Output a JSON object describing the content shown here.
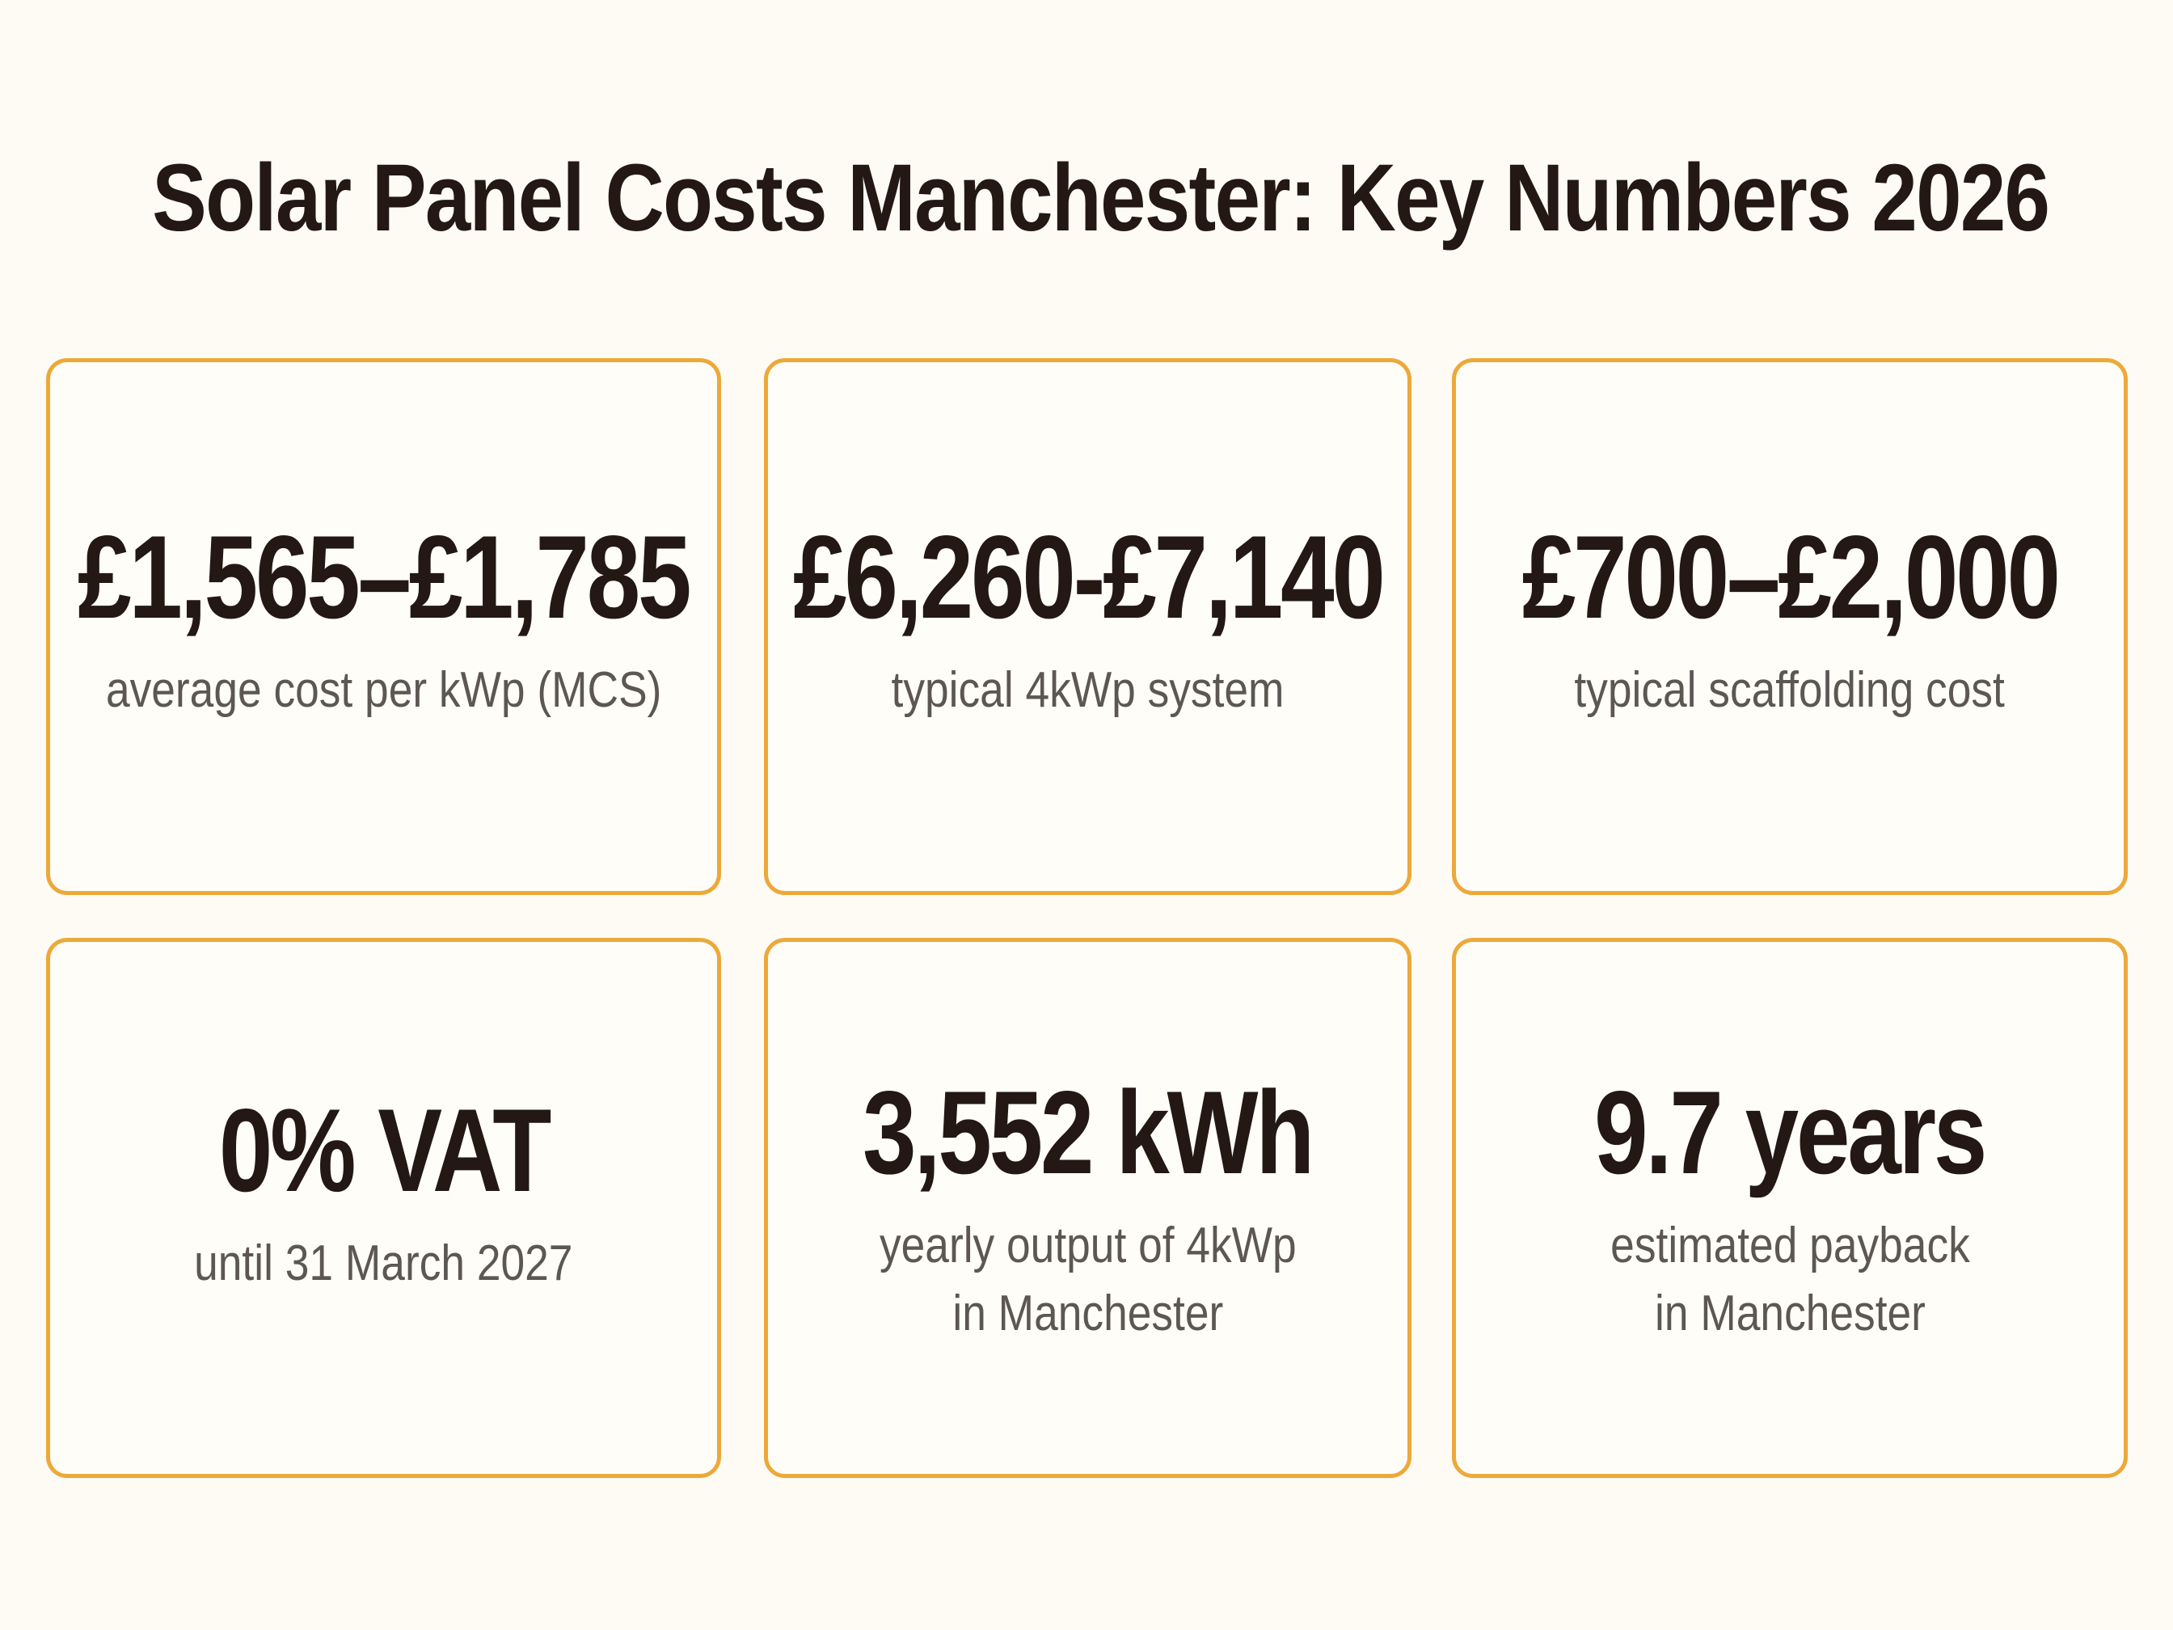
{
  "title": "Solar Panel Costs Manchester: Key Numbers 2026",
  "cards": [
    {
      "value": "£1,565–£1,785",
      "label_lines": [
        "average cost per kWp (MCS)"
      ]
    },
    {
      "value": "£6,260-£7,140",
      "label_lines": [
        "typical 4kWp system"
      ]
    },
    {
      "value": "£700–£2,000",
      "label_lines": [
        "typical scaffolding cost"
      ]
    },
    {
      "value": "0% VAT",
      "label_lines": [
        "until 31 March 2027"
      ]
    },
    {
      "value": "3,552 kWh",
      "label_lines": [
        "yearly output of 4kWp",
        "in Manchester"
      ]
    },
    {
      "value": "9.7 years",
      "label_lines": [
        "estimated payback",
        "in Manchester"
      ]
    }
  ],
  "colors": {
    "background": "#fdfbf4",
    "card_border": "#eca93a",
    "value_text": "#231813",
    "label_text": "#5c5752"
  }
}
